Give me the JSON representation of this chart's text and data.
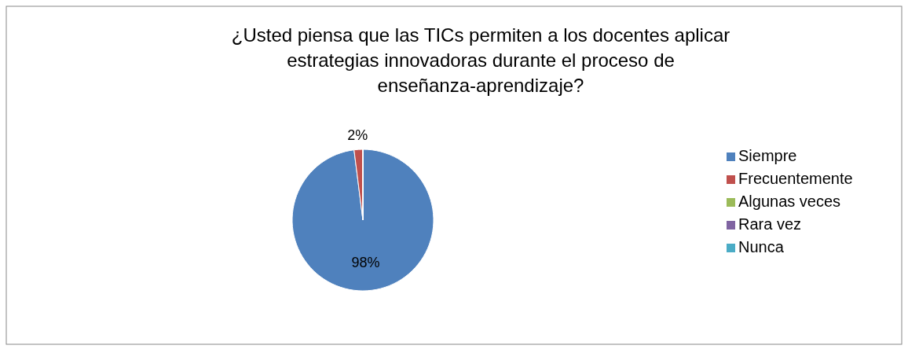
{
  "chart_data": {
    "type": "pie",
    "title": "¿Usted piensa que las TICs permiten a los docentes aplicar estrategias innovadoras durante el proceso de enseñanza-aprendizaje?",
    "categories": [
      "Siempre",
      "Frecuentemente",
      "Algunas veces",
      "Rara vez",
      "Nunca"
    ],
    "values": [
      98,
      2,
      0,
      0,
      0
    ],
    "colors": [
      "#4f81bd",
      "#c0504d",
      "#9bbb59",
      "#8064a2",
      "#4bacc6"
    ],
    "value_labels": [
      "98%",
      "2%",
      null,
      null,
      null
    ],
    "legend": "right"
  }
}
